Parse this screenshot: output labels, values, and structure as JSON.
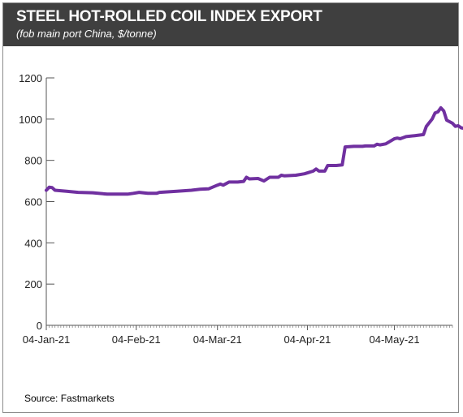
{
  "header": {
    "title": "STEEL HOT-ROLLED COIL INDEX EXPORT",
    "subtitle": "(fob main port China, $/tonne)"
  },
  "source": "Source: Fastmarkets",
  "colors": {
    "line": "#7030a0",
    "header_bg": "#3f3f3f"
  },
  "chart_data": {
    "type": "line",
    "title": "STEEL HOT-ROLLED COIL INDEX EXPORT",
    "subtitle": "(fob main port China, $/tonne)",
    "ylim": [
      0,
      1200
    ],
    "yticks": [
      0,
      200,
      400,
      600,
      800,
      1000,
      1200
    ],
    "xlim": [
      "2021-01-04",
      "2021-05-24"
    ],
    "xticks": [
      {
        "date": "2021-01-04",
        "label": "04-Jan-21"
      },
      {
        "date": "2021-02-04",
        "label": "04-Feb-21"
      },
      {
        "date": "2021-03-04",
        "label": "04-Mar-21"
      },
      {
        "date": "2021-04-04",
        "label": "04-Apr-21"
      },
      {
        "date": "2021-05-04",
        "label": "04-May-21"
      }
    ],
    "grid": false,
    "series": [
      {
        "points": [
          [
            "2021-01-04",
            655
          ],
          [
            "2021-01-05",
            670
          ],
          [
            "2021-01-06",
            668
          ],
          [
            "2021-01-07",
            655
          ],
          [
            "2021-01-11",
            650
          ],
          [
            "2021-01-15",
            645
          ],
          [
            "2021-01-20",
            643
          ],
          [
            "2021-01-25",
            636
          ],
          [
            "2021-01-29",
            636
          ],
          [
            "2021-02-01",
            636
          ],
          [
            "2021-02-03",
            640
          ],
          [
            "2021-02-05",
            645
          ],
          [
            "2021-02-08",
            640
          ],
          [
            "2021-02-11",
            640
          ],
          [
            "2021-02-12",
            645
          ],
          [
            "2021-02-18",
            650
          ],
          [
            "2021-02-23",
            655
          ],
          [
            "2021-02-26",
            660
          ],
          [
            "2021-03-01",
            662
          ],
          [
            "2021-03-04",
            680
          ],
          [
            "2021-03-05",
            685
          ],
          [
            "2021-03-06",
            680
          ],
          [
            "2021-03-08",
            695
          ],
          [
            "2021-03-11",
            695
          ],
          [
            "2021-03-13",
            698
          ],
          [
            "2021-03-14",
            718
          ],
          [
            "2021-03-15",
            710
          ],
          [
            "2021-03-18",
            712
          ],
          [
            "2021-03-20",
            700
          ],
          [
            "2021-03-22",
            718
          ],
          [
            "2021-03-25",
            718
          ],
          [
            "2021-03-26",
            728
          ],
          [
            "2021-03-27",
            725
          ],
          [
            "2021-03-31",
            728
          ],
          [
            "2021-04-03",
            735
          ],
          [
            "2021-04-06",
            748
          ],
          [
            "2021-04-07",
            758
          ],
          [
            "2021-04-08",
            748
          ],
          [
            "2021-04-10",
            748
          ],
          [
            "2021-04-11",
            775
          ],
          [
            "2021-04-14",
            775
          ],
          [
            "2021-04-16",
            778
          ],
          [
            "2021-04-17",
            865
          ],
          [
            "2021-04-20",
            868
          ],
          [
            "2021-04-23",
            868
          ],
          [
            "2021-04-24",
            870
          ],
          [
            "2021-04-27",
            870
          ],
          [
            "2021-04-28",
            878
          ],
          [
            "2021-04-29",
            875
          ],
          [
            "2021-05-01",
            880
          ],
          [
            "2021-05-04",
            905
          ],
          [
            "2021-05-05",
            908
          ],
          [
            "2021-05-06",
            905
          ],
          [
            "2021-05-08",
            915
          ],
          [
            "2021-05-11",
            920
          ],
          [
            "2021-05-14",
            925
          ],
          [
            "2021-05-15",
            965
          ],
          [
            "2021-05-17",
            1000
          ],
          [
            "2021-05-18",
            1030
          ],
          [
            "2021-05-19",
            1035
          ],
          [
            "2021-05-20",
            1055
          ],
          [
            "2021-05-21",
            1040
          ],
          [
            "2021-05-22",
            995
          ],
          [
            "2021-05-24",
            980
          ],
          [
            "2021-05-25",
            965
          ],
          [
            "2021-05-26",
            968
          ],
          [
            "2021-05-27",
            958
          ],
          [
            "2021-05-28",
            955
          ],
          [
            "2021-05-29",
            945
          ]
        ]
      }
    ]
  }
}
